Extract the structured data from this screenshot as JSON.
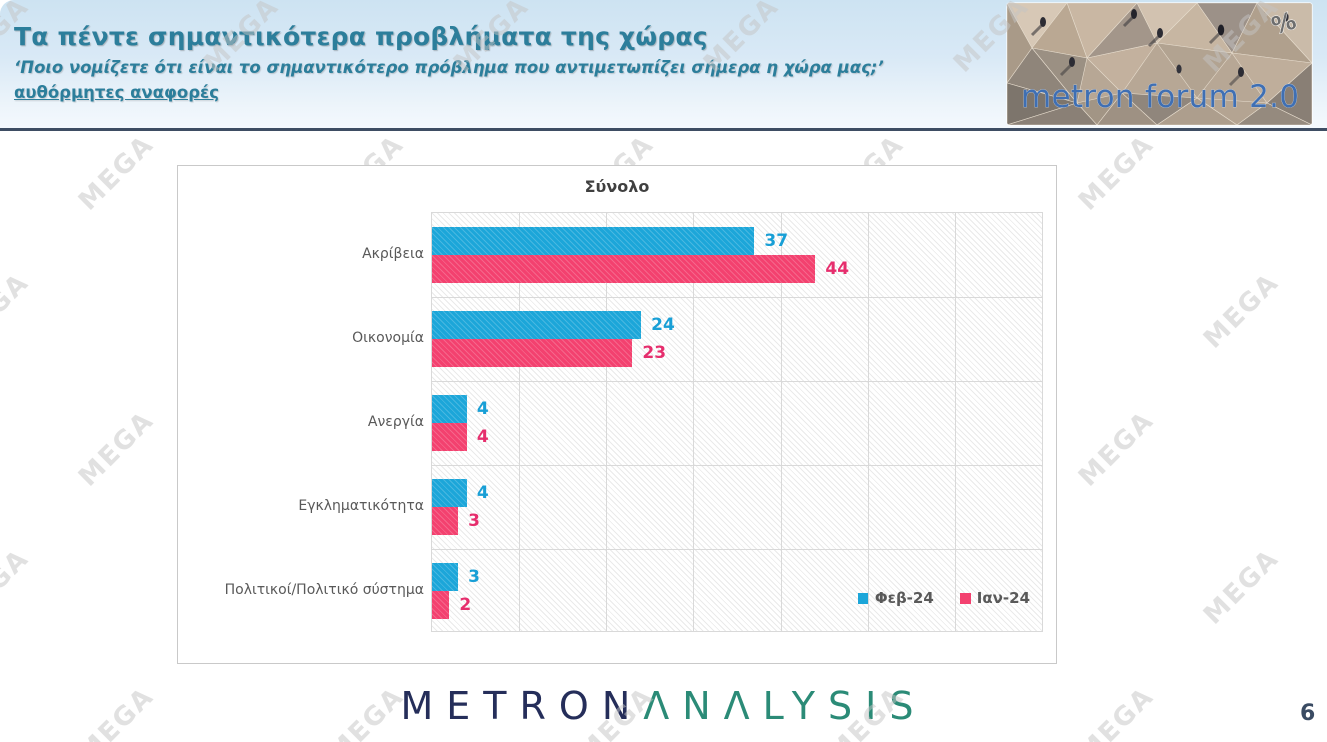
{
  "header": {
    "title": "Τα πέντε σημαντικότερα προβλήματα της χώρας",
    "subtitle": "‘Ποιο νομίζετε ότι είναι το σημαντικότερο πρόβλημα που αντιμετωπίζει σήμερα η χώρα μας;’",
    "note": "αυθόρμητες αναφορές"
  },
  "logo": {
    "brand": "metron forum 2.0",
    "percent_symbol": "%"
  },
  "watermark": {
    "text": "MEGA",
    "rows": 6,
    "cols": 6,
    "col_gap": 250,
    "row_gap": 138,
    "stagger": 125,
    "offset_x": -55,
    "offset_y": 20
  },
  "chart_data": {
    "type": "bar",
    "orientation": "horizontal",
    "title": "Σύνολο",
    "categories": [
      "Ακρίβεια",
      "Οικονομία",
      "Ανεργία",
      "Εγκληματικότητα",
      "Πολιτικοί/Πολιτικό σύστημα"
    ],
    "series": [
      {
        "name": "Φεβ-24",
        "color": "#1CA6D9",
        "label_color": "#189FD6",
        "values": [
          37,
          24,
          4,
          4,
          3
        ]
      },
      {
        "name": "Ιαν-24",
        "color": "#F3416F",
        "label_color": "#E62E6D",
        "values": [
          44,
          23,
          4,
          3,
          2
        ]
      }
    ],
    "xlim": [
      0,
      70
    ],
    "gridline_step": 10,
    "grid": true,
    "legend_position": "inside-bottom-right",
    "background_pattern": "light-diagonal-hatch"
  },
  "footer": {
    "brand_part1": "METRON",
    "brand_part2": "ΛNΛLYSIS",
    "page_number": "6"
  }
}
